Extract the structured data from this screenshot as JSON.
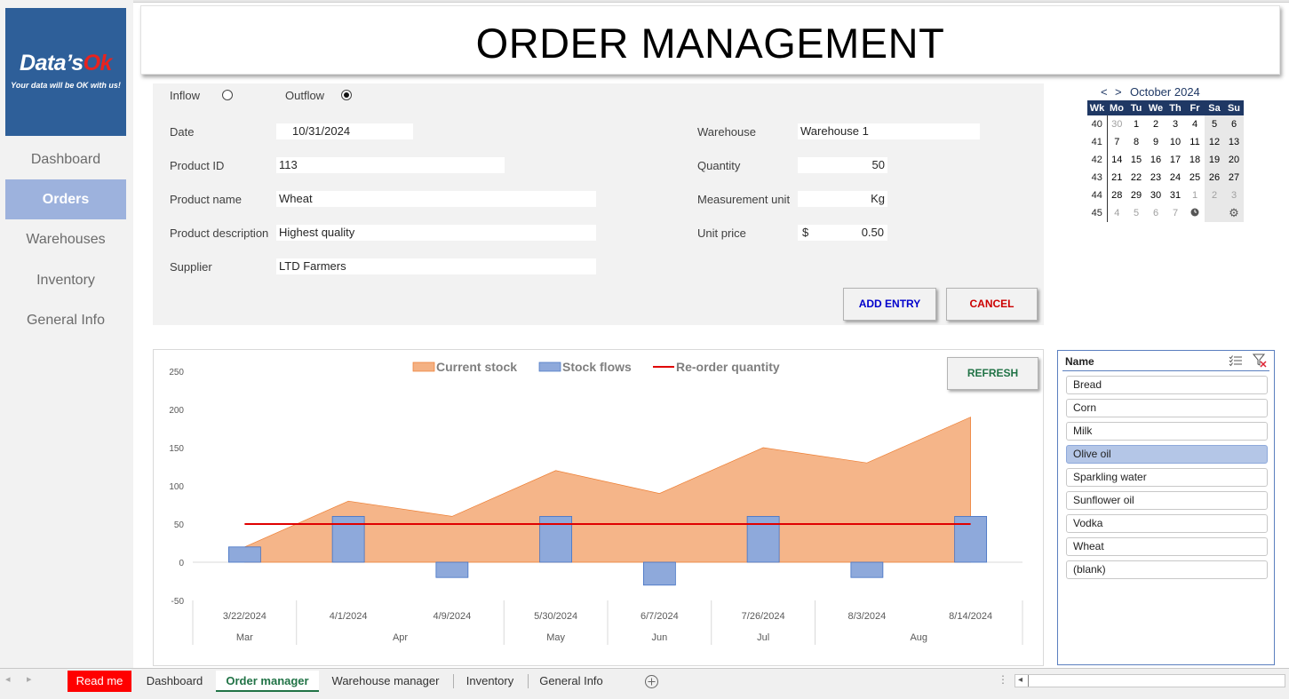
{
  "sidebar": {
    "logo": {
      "brand_main": "Data’s",
      "brand_accent": "Ok",
      "tagline": "Your data will be OK with us!"
    },
    "items": [
      {
        "label": "Dashboard",
        "active": false
      },
      {
        "label": "Orders",
        "active": true
      },
      {
        "label": "Warehouses",
        "active": false
      },
      {
        "label": "Inventory",
        "active": false
      },
      {
        "label": "General Info",
        "active": false
      }
    ]
  },
  "header": {
    "title": "ORDER MANAGEMENT"
  },
  "form": {
    "flow": {
      "inflow_label": "Inflow",
      "outflow_label": "Outflow",
      "selected": "outflow"
    },
    "date_label": "Date",
    "date_value": "10/31/2024",
    "product_id_label": "Product ID",
    "product_id_value": "113",
    "product_name_label": "Product name",
    "product_name_value": "Wheat",
    "product_desc_label": "Product description",
    "product_desc_value": "Highest quality",
    "supplier_label": "Supplier",
    "supplier_value": "LTD Farmers",
    "warehouse_label": "Warehouse",
    "warehouse_value": "Warehouse 1",
    "quantity_label": "Quantity",
    "quantity_value": "50",
    "unit_label": "Measurement unit",
    "unit_value": "Kg",
    "price_label": "Unit price",
    "price_currency": "$",
    "price_value": "0.50",
    "add_label": "ADD ENTRY",
    "cancel_label": "CANCEL"
  },
  "calendar": {
    "prev": "<",
    "next": ">",
    "month_label": "October 2024",
    "headers": [
      "Wk",
      "Mo",
      "Tu",
      "We",
      "Th",
      "Fr",
      "Sa",
      "Su"
    ],
    "weeks": [
      [
        "40",
        "30",
        "1",
        "2",
        "3",
        "4",
        "5",
        "6"
      ],
      [
        "41",
        "7",
        "8",
        "9",
        "10",
        "11",
        "12",
        "13"
      ],
      [
        "42",
        "14",
        "15",
        "16",
        "17",
        "18",
        "19",
        "20"
      ],
      [
        "43",
        "21",
        "22",
        "23",
        "24",
        "25",
        "26",
        "27"
      ],
      [
        "44",
        "28",
        "29",
        "30",
        "31",
        "1",
        "2",
        "3"
      ],
      [
        "45",
        "4",
        "5",
        "6",
        "7",
        "",
        "",
        ""
      ]
    ]
  },
  "chart_refresh_label": "REFRESH",
  "chart_data": {
    "type": "area",
    "x": [
      "3/22/2024",
      "4/1/2024",
      "4/9/2024",
      "5/30/2024",
      "6/7/2024",
      "7/26/2024",
      "8/3/2024",
      "8/14/2024"
    ],
    "months": [
      {
        "label": "Mar",
        "span": 1
      },
      {
        "label": "Apr",
        "span": 2
      },
      {
        "label": "May",
        "span": 1
      },
      {
        "label": "Jun",
        "span": 1
      },
      {
        "label": "Jul",
        "span": 1
      },
      {
        "label": "Aug",
        "span": 2
      }
    ],
    "series": [
      {
        "name": "Current stock",
        "type": "area",
        "color": "#f4b183",
        "values": [
          20,
          80,
          60,
          120,
          90,
          150,
          130,
          190
        ]
      },
      {
        "name": "Stock flows",
        "type": "bar",
        "color": "#8ea9db",
        "values": [
          20,
          60,
          -20,
          60,
          -30,
          60,
          -20,
          60
        ]
      },
      {
        "name": "Re-order quantity",
        "type": "line",
        "color": "#e00000",
        "values": [
          50,
          50,
          50,
          50,
          50,
          50,
          50,
          50
        ]
      }
    ],
    "yticks": [
      250,
      200,
      150,
      100,
      50,
      0,
      -50
    ],
    "ylim": [
      -50,
      250
    ],
    "legend": "top"
  },
  "slicer": {
    "header": "Name",
    "items": [
      {
        "label": "Bread",
        "selected": false
      },
      {
        "label": "Corn",
        "selected": false
      },
      {
        "label": "Milk",
        "selected": false
      },
      {
        "label": "Olive oil",
        "selected": true
      },
      {
        "label": "Sparkling water",
        "selected": false
      },
      {
        "label": "Sunflower oil",
        "selected": false
      },
      {
        "label": "Vodka",
        "selected": false
      },
      {
        "label": "Wheat",
        "selected": false
      },
      {
        "label": "(blank)",
        "selected": false
      }
    ]
  },
  "sheet_tabs": {
    "tabs": [
      "Read me",
      "Dashboard",
      "Order manager",
      "Warehouse manager",
      "Inventory",
      "General Info"
    ],
    "active": "Order manager"
  }
}
